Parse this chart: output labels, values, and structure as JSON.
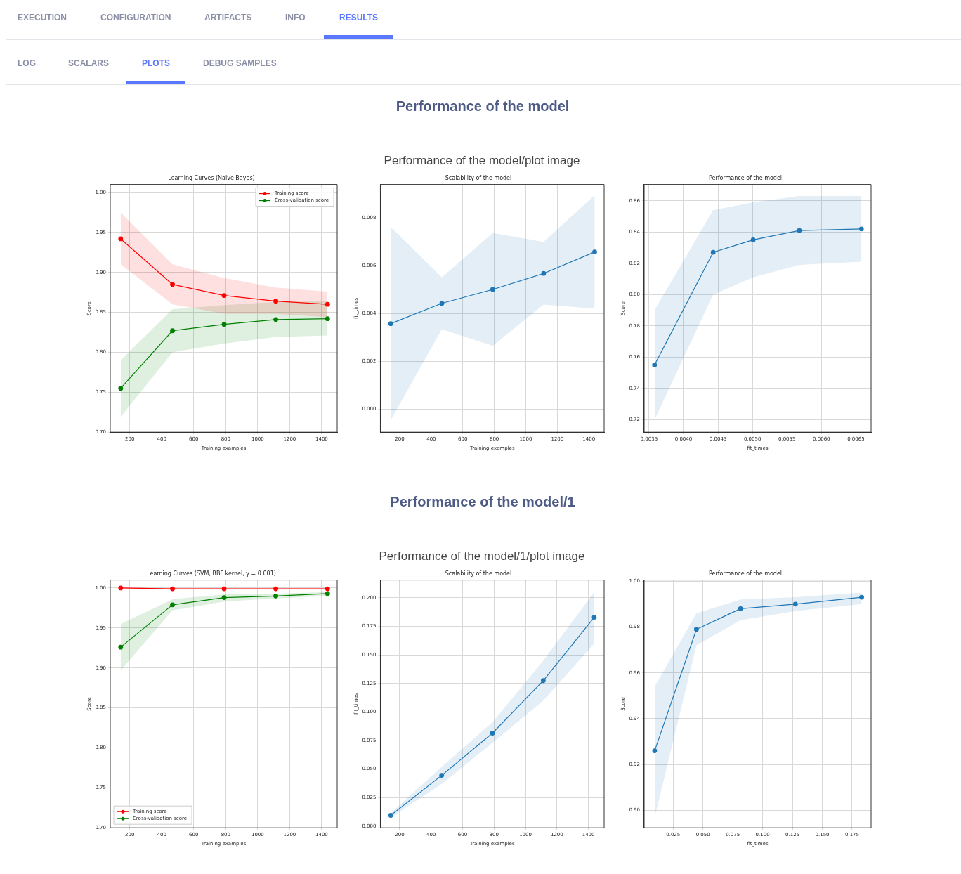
{
  "chart_data": [
    {
      "type": "line",
      "title": "Learning Curves (Naive Bayes)",
      "xlabel": "Training examples",
      "ylabel": "Score",
      "annotations": [
        "EXECUTION",
        "CONFIGURATION",
        "ARTIFACTS",
        "INFO",
        "RESULTS",
        "LOG",
        "SCALARS",
        "PLOTS",
        "DEBUG SAMPLES",
        "Performance of the model",
        "Performance of the model/plot image"
      ],
      "x": [
        143,
        467,
        790,
        1113,
        1437
      ],
      "xlim": [
        78,
        1497
      ],
      "xticks": [
        200,
        400,
        600,
        800,
        1000,
        1200,
        1400
      ],
      "ylim": [
        0.7,
        1.01
      ],
      "yticks": [
        {
          "value": 0.7,
          "label": "0.70"
        },
        0.75,
        {
          "value": 0.8,
          "label": "0.80"
        },
        0.85,
        {
          "value": 0.9,
          "label": "0.90"
        },
        0.95,
        {
          "value": 1.0,
          "label": "1.00"
        }
      ],
      "grid": true,
      "legend": "top right",
      "marker": "circle",
      "series": [
        {
          "name": "Training score",
          "color": "#ff0000",
          "values": [
            0.942,
            0.885,
            0.871,
            0.864,
            0.86
          ],
          "lower": [
            0.91,
            0.86,
            0.848,
            0.848,
            0.844
          ],
          "upper": [
            0.975,
            0.91,
            0.893,
            0.881,
            0.876
          ]
        },
        {
          "name": "Cross-validation score",
          "color": "#008000",
          "values": [
            0.755,
            0.827,
            0.835,
            0.841,
            0.842
          ],
          "lower": [
            0.719,
            0.8,
            0.811,
            0.819,
            0.821
          ],
          "upper": [
            0.79,
            0.854,
            0.859,
            0.863,
            0.864
          ]
        }
      ]
    },
    {
      "type": "line",
      "title": "Scalability of the model",
      "xlabel": "Training examples",
      "ylabel": "fit_times",
      "x": [
        143,
        467,
        790,
        1113,
        1437
      ],
      "xlim": [
        77,
        1497
      ],
      "xticks": [
        200,
        400,
        600,
        800,
        1000,
        1200,
        1400
      ],
      "ylim": [
        -0.00096,
        0.0094
      ],
      "yticks": [
        {
          "value": 0,
          "label": "0.000"
        },
        0.002,
        0.004,
        0.006,
        0.008
      ],
      "grid": true,
      "marker": "circle",
      "series": [
        {
          "color": "#1f77b4",
          "values": [
            0.00358,
            0.00443,
            0.00501,
            0.00568,
            0.00658
          ],
          "lower": [
            -0.00045,
            0.00335,
            0.00265,
            0.00438,
            0.00421
          ],
          "upper": [
            0.00762,
            0.00552,
            0.00737,
            0.007,
            0.00895
          ]
        }
      ]
    },
    {
      "type": "line",
      "title": "Performance of the model",
      "xlabel": "fit_times",
      "ylabel": "Score",
      "xlim": [
        0.00343,
        0.00672
      ],
      "xticks": [
        0.0035,
        {
          "value": 0.004,
          "label": "0.0040"
        },
        0.0045,
        {
          "value": 0.005,
          "label": "0.0050"
        },
        0.0055,
        {
          "value": 0.006,
          "label": "0.0060"
        },
        0.0065
      ],
      "ylim": [
        0.712,
        0.8704
      ],
      "yticks": [
        0.72,
        0.74,
        0.76,
        0.78,
        {
          "value": 0.8,
          "label": "0.80"
        },
        0.82,
        0.84,
        0.86
      ],
      "grid": true,
      "marker": "circle",
      "series": [
        {
          "color": "#1f77b4",
          "x": [
            0.00358,
            0.00443,
            0.00501,
            0.00568,
            0.00658
          ],
          "values": [
            0.755,
            0.827,
            0.835,
            0.841,
            0.842
          ],
          "lower": [
            0.72,
            0.8,
            0.811,
            0.819,
            0.821
          ],
          "upper": [
            0.79,
            0.854,
            0.859,
            0.863,
            0.863
          ]
        }
      ]
    },
    {
      "type": "line",
      "title": "Learning Curves (SVM, RBF kernel, γ = 0.001)",
      "xlabel": "Training examples",
      "ylabel": "Score",
      "annotations": [
        "Performance of the model/1",
        "Performance of the model/1/plot image"
      ],
      "x": [
        143,
        467,
        790,
        1113,
        1437
      ],
      "xlim": [
        78,
        1497
      ],
      "xticks": [
        200,
        400,
        600,
        800,
        1000,
        1200,
        1400
      ],
      "ylim": [
        0.7,
        1.01
      ],
      "yticks": [
        {
          "value": 0.7,
          "label": "0.70"
        },
        0.75,
        {
          "value": 0.8,
          "label": "0.80"
        },
        0.85,
        {
          "value": 0.9,
          "label": "0.90"
        },
        0.95,
        {
          "value": 1.0,
          "label": "1.00"
        }
      ],
      "grid": true,
      "legend": "bottom left",
      "marker": "circle",
      "series": [
        {
          "name": "Training score",
          "color": "#ff0000",
          "values": [
            1.0,
            0.999,
            0.999,
            0.999,
            0.999
          ],
          "lower": [
            1.0,
            0.998,
            0.998,
            0.998,
            0.998
          ],
          "upper": [
            1.0,
            1.0,
            1.0,
            1.0,
            1.0
          ]
        },
        {
          "name": "Cross-validation score",
          "color": "#008000",
          "values": [
            0.926,
            0.979,
            0.988,
            0.99,
            0.993
          ],
          "lower": [
            0.897,
            0.972,
            0.983,
            0.987,
            0.99
          ],
          "upper": [
            0.955,
            0.986,
            0.992,
            0.993,
            0.995
          ]
        }
      ]
    },
    {
      "type": "line",
      "title": "Scalability of the model",
      "xlabel": "Training examples",
      "ylabel": "fit_times",
      "x": [
        143,
        467,
        790,
        1113,
        1437
      ],
      "xlim": [
        77,
        1500
      ],
      "xticks": [
        200,
        400,
        600,
        800,
        1000,
        1200,
        1400
      ],
      "ylim": [
        -0.0014,
        0.2156
      ],
      "yticks": [
        {
          "value": 0,
          "label": "0.000"
        },
        0.025,
        {
          "value": 0.05,
          "label": "0.050"
        },
        0.075,
        {
          "value": 0.1,
          "label": "0.100"
        },
        0.125,
        {
          "value": 0.15,
          "label": "0.150"
        },
        0.175,
        {
          "value": 0.2,
          "label": "0.200"
        }
      ],
      "grid": true,
      "marker": "circle",
      "series": [
        {
          "color": "#1f77b4",
          "values": [
            0.0095,
            0.0445,
            0.0815,
            0.1275,
            0.183
          ],
          "lower": [
            0.0075,
            0.037,
            0.073,
            0.11,
            0.16
          ],
          "upper": [
            0.0115,
            0.052,
            0.091,
            0.145,
            0.205
          ]
        }
      ]
    },
    {
      "type": "line",
      "title": "Performance of the model",
      "xlabel": "fit_times",
      "ylabel": "Score",
      "xlim": [
        0.0007,
        0.1909
      ],
      "xticks": [
        0.025,
        {
          "value": 0.05,
          "label": "0.050"
        },
        0.075,
        {
          "value": 0.1,
          "label": "0.100"
        },
        0.125,
        {
          "value": 0.15,
          "label": "0.150"
        },
        0.175
      ],
      "ylim": [
        0.8924,
        1.0005
      ],
      "yticks": [
        {
          "value": 0.9,
          "label": "0.90"
        },
        0.92,
        0.94,
        0.96,
        0.98,
        {
          "value": 1.0,
          "label": "1.00"
        }
      ],
      "grid": true,
      "marker": "circle",
      "series": [
        {
          "color": "#1f77b4",
          "x": [
            0.0095,
            0.0445,
            0.0815,
            0.1275,
            0.183
          ],
          "values": [
            0.926,
            0.979,
            0.988,
            0.99,
            0.993
          ],
          "lower": [
            0.897,
            0.972,
            0.983,
            0.987,
            0.99
          ],
          "upper": [
            0.954,
            0.986,
            0.992,
            0.993,
            0.995
          ]
        }
      ]
    }
  ]
}
